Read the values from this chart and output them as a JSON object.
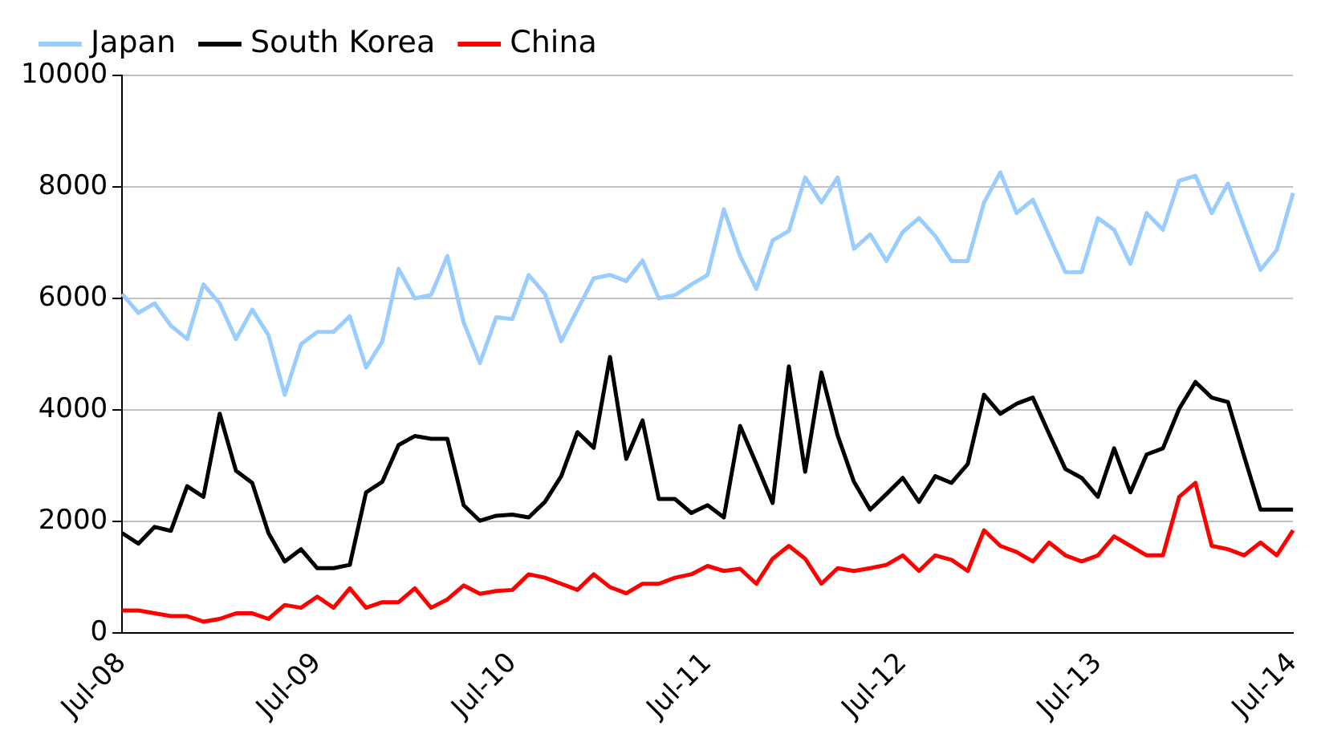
{
  "chart_data": {
    "type": "line",
    "categories": [
      "Jul-08",
      null,
      null,
      null,
      null,
      null,
      null,
      null,
      null,
      null,
      null,
      null,
      "Jul-09",
      null,
      null,
      null,
      null,
      null,
      null,
      null,
      null,
      null,
      null,
      null,
      "Jul-10",
      null,
      null,
      null,
      null,
      null,
      null,
      null,
      null,
      null,
      null,
      null,
      "Jul-11",
      null,
      null,
      null,
      null,
      null,
      null,
      null,
      null,
      null,
      null,
      null,
      "Jul-12",
      null,
      null,
      null,
      null,
      null,
      null,
      null,
      null,
      null,
      null,
      null,
      "Jul-13",
      null,
      null,
      null,
      null,
      null,
      null,
      null,
      null,
      null,
      null,
      null,
      "Jul-14"
    ],
    "series": [
      {
        "name": "Japan",
        "color": "#99ccff",
        "values": [
          6080,
          5740,
          5910,
          5510,
          5270,
          6250,
          5910,
          5270,
          5800,
          5340,
          4270,
          5180,
          5400,
          5400,
          5680,
          4760,
          5230,
          6530,
          6000,
          6060,
          6760,
          5570,
          4840,
          5660,
          5630,
          6420,
          6080,
          5230,
          5800,
          6360,
          6420,
          6310,
          6680,
          6000,
          6060,
          6250,
          6420,
          7600,
          6760,
          6170,
          7040,
          7210,
          8170,
          7720,
          8170,
          6890,
          7150,
          6670,
          7190,
          7440,
          7120,
          6670,
          6670,
          7720,
          8260,
          7530,
          7770,
          7120,
          6470,
          6470,
          7440,
          7230,
          6620,
          7530,
          7230,
          8110,
          8200,
          7530,
          8060,
          7270,
          6510,
          6870,
          7890
        ]
      },
      {
        "name": "South Korea",
        "color": "#000000",
        "values": [
          1790,
          1600,
          1900,
          1830,
          2630,
          2440,
          3930,
          2910,
          2690,
          1790,
          1280,
          1500,
          1160,
          1160,
          1220,
          2520,
          2710,
          3370,
          3530,
          3480,
          3480,
          2290,
          2010,
          2100,
          2120,
          2070,
          2350,
          2810,
          3600,
          3320,
          4950,
          3120,
          3810,
          2400,
          2400,
          2150,
          2290,
          2070,
          3710,
          3030,
          2330,
          4780,
          2890,
          4670,
          3540,
          2710,
          2210,
          2490,
          2780,
          2350,
          2810,
          2690,
          3030,
          4270,
          3930,
          4110,
          4220,
          3570,
          2940,
          2780,
          2440,
          3310,
          2520,
          3200,
          3310,
          4020,
          4500,
          4220,
          4140,
          3160,
          2210,
          2210,
          2210
        ]
      },
      {
        "name": "China",
        "color": "#ff0000",
        "values": [
          400,
          400,
          350,
          300,
          300,
          200,
          250,
          350,
          350,
          250,
          500,
          450,
          650,
          450,
          800,
          450,
          550,
          550,
          800,
          450,
          600,
          850,
          700,
          750,
          770,
          1050,
          990,
          880,
          770,
          1050,
          820,
          710,
          880,
          880,
          990,
          1050,
          1200,
          1110,
          1150,
          880,
          1330,
          1560,
          1330,
          880,
          1160,
          1110,
          1160,
          1220,
          1390,
          1110,
          1390,
          1310,
          1110,
          1840,
          1560,
          1450,
          1280,
          1620,
          1390,
          1280,
          1390,
          1730,
          1560,
          1390,
          1390,
          2440,
          2690,
          1560,
          1500,
          1390,
          1620,
          1390,
          1840
        ]
      }
    ],
    "ylim": [
      0,
      10000
    ],
    "yticks": [
      0,
      2000,
      4000,
      6000,
      8000,
      10000
    ],
    "grid": "y",
    "legend": "top left",
    "marker": "none",
    "line_style": "solid"
  }
}
